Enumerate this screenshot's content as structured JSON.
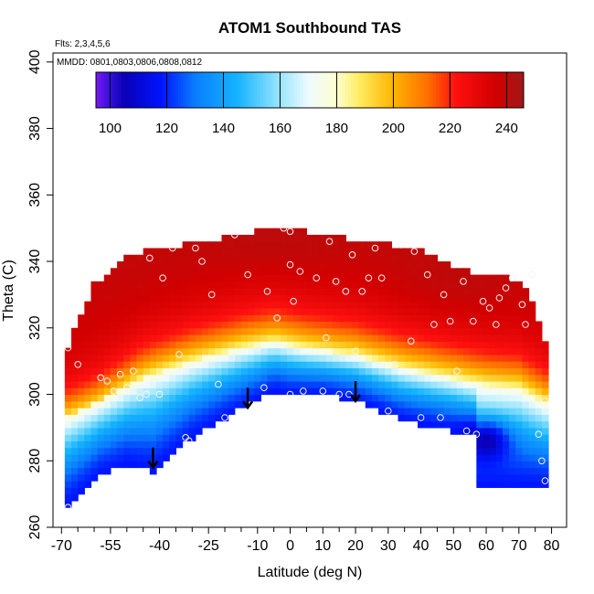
{
  "chart_data": {
    "type": "heatmap",
    "title": "ATOM1 Southbound TAS",
    "xlabel": "Latitude (deg N)",
    "ylabel": "Theta (C)",
    "annotations": [
      "Flts: 2,3,4,5,6",
      "MMDD: 0801,0803,0806,0808,0812"
    ],
    "x_ticks": [
      -70,
      -55,
      -40,
      -25,
      -10,
      0,
      10,
      20,
      30,
      40,
      50,
      60,
      70,
      80
    ],
    "x_tick_labels": [
      "-70",
      "-55",
      "-40",
      "-25",
      "-10",
      "0",
      "10",
      "20",
      "30",
      "40",
      "50",
      "60",
      "70",
      "80"
    ],
    "y_ticks": [
      260,
      280,
      300,
      320,
      340,
      360,
      380,
      400
    ],
    "y_tick_labels": [
      "260",
      "280",
      "300",
      "320",
      "340",
      "360",
      "380",
      "400"
    ],
    "colorbar": {
      "range": [
        95,
        246
      ],
      "ticks": [
        100,
        120,
        140,
        160,
        180,
        200,
        220,
        240
      ],
      "tick_labels": [
        "100",
        "120",
        "140",
        "160",
        "180",
        "200",
        "220",
        "240"
      ],
      "colors": [
        {
          "v": 95,
          "c": "#7b18f5"
        },
        {
          "v": 100,
          "c": "#3410d8"
        },
        {
          "v": 105,
          "c": "#0a00b8"
        },
        {
          "v": 118,
          "c": "#0014ff"
        },
        {
          "v": 130,
          "c": "#0a7dff"
        },
        {
          "v": 145,
          "c": "#15b4ff"
        },
        {
          "v": 160,
          "c": "#9be6ff"
        },
        {
          "v": 170,
          "c": "#eefaff"
        },
        {
          "v": 180,
          "c": "#ffffd0"
        },
        {
          "v": 188,
          "c": "#ffec60"
        },
        {
          "v": 200,
          "c": "#ffb400"
        },
        {
          "v": 212,
          "c": "#ff7000"
        },
        {
          "v": 222,
          "c": "#ff1010"
        },
        {
          "v": 236,
          "c": "#d20000"
        },
        {
          "v": 246,
          "c": "#a01818"
        }
      ]
    },
    "domain": {
      "x_range": [
        -69,
        79
      ],
      "lower_boundary": [
        [
          -69,
          266
        ],
        [
          -58,
          276
        ],
        [
          -50,
          279
        ],
        [
          -42,
          277
        ],
        [
          -30,
          287
        ],
        [
          -20,
          293
        ],
        [
          -5,
          301
        ],
        [
          0,
          300
        ],
        [
          10,
          300
        ],
        [
          20,
          298
        ],
        [
          35,
          292
        ],
        [
          50,
          289
        ],
        [
          57,
          287
        ],
        [
          57,
          272
        ],
        [
          79,
          272
        ]
      ],
      "upper_boundary": [
        [
          -69,
          311
        ],
        [
          -65,
          322
        ],
        [
          -60,
          333
        ],
        [
          -50,
          342
        ],
        [
          -40,
          344
        ],
        [
          -20,
          347
        ],
        [
          -10,
          349
        ],
        [
          0,
          350
        ],
        [
          10,
          348
        ],
        [
          25,
          346
        ],
        [
          38,
          344
        ],
        [
          48,
          339
        ],
        [
          55,
          337
        ],
        [
          65,
          336
        ],
        [
          72,
          332
        ],
        [
          76,
          322
        ],
        [
          79,
          313
        ]
      ]
    },
    "warm_peaks": [
      {
        "lat": -65,
        "theta": 325,
        "value": 236,
        "spread_lat": 14,
        "spread_theta": 30
      },
      {
        "lat": -5,
        "theta": 345,
        "value": 244,
        "spread_lat": 20,
        "spread_theta": 8
      },
      {
        "lat": 50,
        "theta": 335,
        "value": 243,
        "spread_lat": 16,
        "spread_theta": 10
      }
    ],
    "tropopause_transition_points": [
      [
        -69,
        293
      ],
      [
        -58,
        298
      ],
      [
        -45,
        305
      ],
      [
        -30,
        310
      ],
      [
        -15,
        314
      ],
      [
        -5,
        316
      ],
      [
        5,
        314
      ],
      [
        20,
        312
      ],
      [
        35,
        308
      ],
      [
        50,
        305
      ],
      [
        60,
        303
      ],
      [
        70,
        302
      ],
      [
        79,
        297
      ]
    ],
    "cold_pool": {
      "lat": 60,
      "theta": 286,
      "value": 104,
      "spread_lat": 7,
      "spread_theta": 6
    },
    "sample_points": [
      [
        -68,
        314
      ],
      [
        -68,
        266
      ],
      [
        -65,
        309
      ],
      [
        -58,
        305
      ],
      [
        -56,
        304
      ],
      [
        -54,
        301
      ],
      [
        -52,
        306
      ],
      [
        -50,
        302
      ],
      [
        -48,
        307
      ],
      [
        -46,
        299
      ],
      [
        -44,
        300
      ],
      [
        -43,
        341
      ],
      [
        -40,
        300
      ],
      [
        -39,
        335
      ],
      [
        -36,
        344
      ],
      [
        -34,
        312
      ],
      [
        -33,
        307
      ],
      [
        -32,
        287
      ],
      [
        -31,
        286
      ],
      [
        -29,
        344
      ],
      [
        -27,
        340
      ],
      [
        -24,
        330
      ],
      [
        -22,
        303
      ],
      [
        -20,
        293
      ],
      [
        -18,
        311
      ],
      [
        -17,
        348
      ],
      [
        -13,
        336
      ],
      [
        -10,
        314
      ],
      [
        -8,
        302
      ],
      [
        -7,
        331
      ],
      [
        -4,
        323
      ],
      [
        -2,
        350
      ],
      [
        0,
        300
      ],
      [
        0,
        339
      ],
      [
        0,
        349
      ],
      [
        1,
        328
      ],
      [
        3,
        337
      ],
      [
        4,
        301
      ],
      [
        6,
        313
      ],
      [
        8,
        335
      ],
      [
        10,
        301
      ],
      [
        11,
        317
      ],
      [
        12,
        346
      ],
      [
        14,
        334
      ],
      [
        15,
        300
      ],
      [
        17,
        331
      ],
      [
        18,
        300
      ],
      [
        19,
        342
      ],
      [
        20,
        313
      ],
      [
        22,
        331
      ],
      [
        24,
        335
      ],
      [
        26,
        344
      ],
      [
        28,
        335
      ],
      [
        30,
        295
      ],
      [
        32,
        309
      ],
      [
        34,
        345
      ],
      [
        37,
        316
      ],
      [
        38,
        343
      ],
      [
        40,
        293
      ],
      [
        42,
        336
      ],
      [
        44,
        321
      ],
      [
        46,
        293
      ],
      [
        47,
        330
      ],
      [
        49,
        322
      ],
      [
        51,
        307
      ],
      [
        53,
        334
      ],
      [
        54,
        289
      ],
      [
        56,
        322
      ],
      [
        57,
        288
      ],
      [
        59,
        328
      ],
      [
        61,
        326
      ],
      [
        63,
        321
      ],
      [
        64,
        329
      ],
      [
        66,
        332
      ],
      [
        68,
        335
      ],
      [
        71,
        327
      ],
      [
        72,
        321
      ],
      [
        74,
        336
      ],
      [
        76,
        288
      ],
      [
        77,
        280
      ],
      [
        78,
        298
      ],
      [
        78,
        274
      ]
    ],
    "arrows": [
      [
        -42,
        284
      ],
      [
        -13,
        302
      ],
      [
        20,
        304
      ]
    ]
  }
}
